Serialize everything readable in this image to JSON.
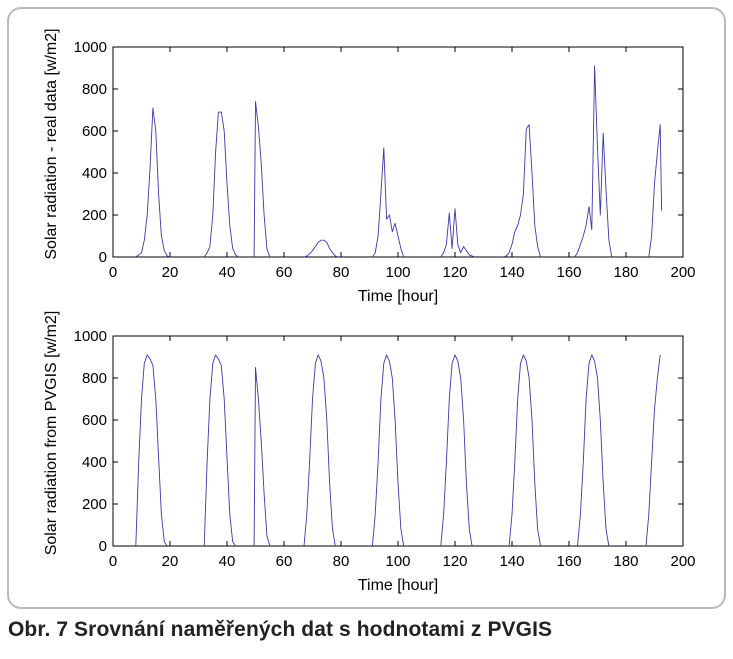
{
  "caption": "Obr. 7 Srovnání naměřených dat s hodnotami z PVGIS",
  "colors": {
    "series": "#3a3aa8",
    "axes": "#000000",
    "frame": "#b9b9b9"
  },
  "chart_data": [
    {
      "type": "line",
      "xlabel": "Time [hour]",
      "ylabel": "Solar radiation - real data [w/m2]",
      "xlim": [
        0,
        200
      ],
      "ylim": [
        0,
        1000
      ],
      "xticks": [
        0,
        20,
        40,
        60,
        80,
        100,
        120,
        140,
        160,
        180,
        200
      ],
      "yticks": [
        0,
        200,
        400,
        600,
        800,
        1000
      ],
      "grid": false,
      "series": [
        {
          "x": [
            8,
            9,
            10,
            11,
            12,
            13,
            14,
            15,
            16,
            17,
            18,
            19,
            20
          ],
          "y": [
            0,
            10,
            20,
            80,
            200,
            430,
            710,
            600,
            300,
            100,
            30,
            5,
            0
          ]
        },
        {
          "x": [
            32,
            33,
            34,
            35,
            36,
            37,
            38,
            39,
            40,
            41,
            42,
            43,
            44
          ],
          "y": [
            0,
            20,
            50,
            200,
            500,
            690,
            690,
            600,
            350,
            150,
            40,
            10,
            0
          ]
        },
        {
          "x": [
            49.5,
            50,
            51,
            52,
            53,
            54,
            55
          ],
          "y": [
            0,
            740,
            620,
            450,
            200,
            40,
            0
          ]
        },
        {
          "x": [
            67,
            68,
            69,
            70,
            71,
            72,
            73,
            74,
            75,
            76,
            77,
            78,
            79
          ],
          "y": [
            0,
            5,
            15,
            30,
            50,
            70,
            80,
            80,
            70,
            40,
            20,
            5,
            0
          ]
        },
        {
          "x": [
            91,
            92,
            93,
            94,
            95,
            96,
            97,
            98,
            99,
            100,
            101,
            102
          ],
          "y": [
            0,
            20,
            100,
            300,
            520,
            180,
            200,
            120,
            160,
            100,
            40,
            0
          ]
        },
        {
          "x": [
            115,
            116,
            117,
            118,
            119,
            120,
            121,
            122,
            123,
            124,
            125,
            126,
            127
          ],
          "y": [
            0,
            20,
            60,
            210,
            40,
            230,
            60,
            20,
            50,
            30,
            10,
            5,
            0
          ]
        },
        {
          "x": [
            137,
            138,
            139,
            140,
            141,
            142,
            143,
            144,
            145,
            146,
            147,
            148,
            149,
            150
          ],
          "y": [
            0,
            5,
            20,
            60,
            120,
            150,
            200,
            300,
            610,
            630,
            400,
            150,
            50,
            0
          ]
        },
        {
          "x": [
            162,
            163,
            164,
            165,
            166,
            167,
            168,
            169,
            170,
            171,
            172,
            173,
            174,
            175
          ],
          "y": [
            0,
            20,
            60,
            100,
            150,
            240,
            130,
            910,
            520,
            200,
            590,
            320,
            80,
            0
          ]
        },
        {
          "x": [
            188,
            189,
            190,
            191,
            192,
            192.5
          ],
          "y": [
            0,
            100,
            350,
            500,
            630,
            220
          ]
        }
      ]
    },
    {
      "type": "line",
      "xlabel": "Time [hour]",
      "ylabel": "Solar radiation from PVGIS [w/m2]",
      "xlim": [
        0,
        200
      ],
      "ylim": [
        0,
        1000
      ],
      "xticks": [
        0,
        20,
        40,
        60,
        80,
        100,
        120,
        140,
        160,
        180,
        200
      ],
      "yticks": [
        0,
        200,
        400,
        600,
        800,
        1000
      ],
      "grid": false,
      "series": [
        {
          "x": [
            8,
            9,
            10,
            11,
            12,
            13,
            14,
            15,
            16,
            17,
            18,
            19
          ],
          "y": [
            0,
            400,
            700,
            870,
            910,
            890,
            860,
            700,
            420,
            150,
            20,
            0
          ]
        },
        {
          "x": [
            32,
            33,
            34,
            35,
            36,
            37,
            38,
            39,
            40,
            41,
            42,
            43
          ],
          "y": [
            0,
            400,
            700,
            870,
            910,
            890,
            860,
            700,
            420,
            150,
            20,
            0
          ]
        },
        {
          "x": [
            49.5,
            50,
            51,
            52,
            53,
            54,
            55
          ],
          "y": [
            0,
            850,
            700,
            500,
            250,
            50,
            0
          ]
        },
        {
          "x": [
            67,
            68,
            69,
            70,
            71,
            72,
            73,
            74,
            75,
            76,
            77,
            78
          ],
          "y": [
            0,
            150,
            400,
            700,
            870,
            910,
            880,
            800,
            600,
            300,
            80,
            0
          ]
        },
        {
          "x": [
            91,
            92,
            93,
            94,
            95,
            96,
            97,
            98,
            99,
            100,
            101,
            102
          ],
          "y": [
            0,
            150,
            400,
            700,
            870,
            910,
            880,
            800,
            600,
            300,
            80,
            0
          ]
        },
        {
          "x": [
            115,
            116,
            117,
            118,
            119,
            120,
            121,
            122,
            123,
            124,
            125,
            126
          ],
          "y": [
            0,
            150,
            400,
            700,
            870,
            910,
            880,
            800,
            600,
            300,
            80,
            0
          ]
        },
        {
          "x": [
            139,
            140,
            141,
            142,
            143,
            144,
            145,
            146,
            147,
            148,
            149,
            150
          ],
          "y": [
            0,
            150,
            400,
            700,
            870,
            910,
            880,
            800,
            600,
            300,
            80,
            0
          ]
        },
        {
          "x": [
            163,
            164,
            165,
            166,
            167,
            168,
            169,
            170,
            171,
            172,
            173,
            174
          ],
          "y": [
            0,
            150,
            400,
            700,
            870,
            910,
            880,
            800,
            600,
            300,
            80,
            0
          ]
        },
        {
          "x": [
            187,
            188,
            189,
            190,
            191,
            192
          ],
          "y": [
            0,
            150,
            400,
            650,
            800,
            910
          ]
        }
      ]
    }
  ]
}
